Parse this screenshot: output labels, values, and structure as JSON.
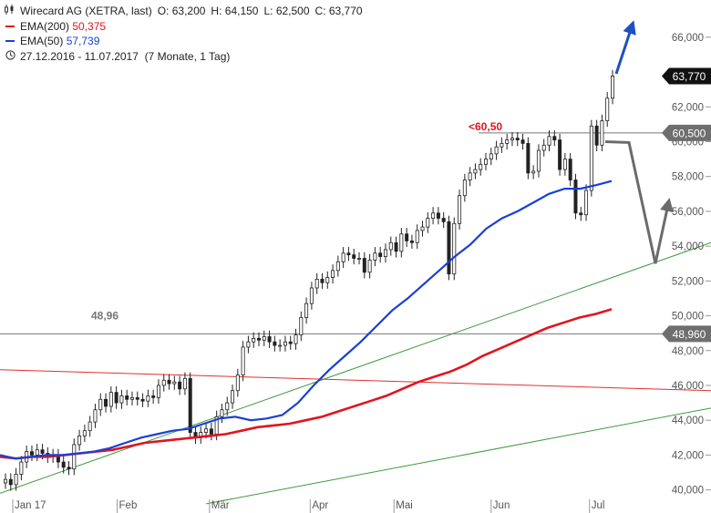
{
  "header": {
    "instrument": "Wirecard AG (XETRA, last)",
    "ohlc": [
      {
        "label": "O:",
        "value": "63,200"
      },
      {
        "label": "H:",
        "value": "64,150"
      },
      {
        "label": "L:",
        "value": "62,500"
      },
      {
        "label": "C:",
        "value": "63,770"
      }
    ],
    "ema200_label": "EMA(200)",
    "ema200_value": "50,375",
    "ema50_label": "EMA(50)",
    "ema50_value": "57,739",
    "period": "27.12.2016 - 11.07.2017",
    "period_detail": "(7 Monate, 1 Tag)",
    "chart_icon": "candlestick-icon",
    "clock_icon": "clock-icon"
  },
  "colors": {
    "ema200": "#e0141e",
    "ema50": "#1a3fd6",
    "support_line": "#3c9a3c",
    "resistance_line": "#e03030",
    "arrow_up": "#1f4fc0",
    "arrow_path": "#6b6b6b",
    "level_line": "#777777"
  },
  "chart_data": {
    "type": "candlestick",
    "x_ticks": [
      "Jan 17",
      "Feb",
      "Mär",
      "Apr",
      "Mai",
      "Jun",
      "Jul"
    ],
    "y_ticks": [
      "40,000",
      "42,000",
      "44,000",
      "46,000",
      "48,000",
      "50,000",
      "52,000",
      "54,000",
      "56,000",
      "58,000",
      "60,000",
      "62,000",
      "64,000",
      "66,000"
    ],
    "y_tick_values": [
      40,
      42,
      44,
      46,
      48,
      50,
      52,
      54,
      56,
      58,
      60,
      62,
      64,
      66
    ],
    "ylim": [
      39.3,
      67.3
    ],
    "grid": false,
    "candles_close": [
      40.6,
      40.3,
      40.9,
      41.6,
      42.2,
      42.0,
      42.3,
      42.1,
      41.9,
      42.0,
      41.6,
      41.3,
      41.2,
      42.6,
      43.1,
      43.4,
      43.9,
      44.6,
      45.2,
      44.8,
      45.6,
      45.0,
      45.4,
      45.2,
      45.3,
      45.2,
      45.1,
      45.4,
      45.3,
      46.0,
      46.3,
      46.1,
      46.2,
      45.8,
      46.4,
      43.3,
      43.0,
      43.3,
      43.5,
      43.2,
      44.2,
      44.6,
      45.0,
      45.7,
      46.6,
      48.2,
      48.5,
      48.7,
      48.6,
      48.8,
      48.5,
      48.3,
      48.3,
      48.5,
      48.4,
      48.9,
      49.9,
      50.7,
      51.6,
      52.1,
      51.9,
      52.2,
      52.6,
      53.1,
      53.6,
      53.5,
      53.3,
      53.3,
      52.5,
      53.2,
      53.6,
      53.4,
      53.8,
      54.2,
      53.7,
      54.7,
      54.3,
      54.2,
      54.9,
      55.1,
      55.6,
      55.9,
      55.6,
      55.4,
      52.4,
      55.3,
      56.9,
      57.8,
      58.2,
      58.4,
      58.7,
      59.0,
      59.3,
      59.7,
      59.9,
      60.1,
      60.2,
      60.1,
      59.9,
      58.2,
      58.3,
      59.5,
      59.8,
      60.3,
      60.1,
      58.4,
      59.0,
      57.8,
      55.9,
      55.8,
      57.2,
      60.9,
      59.8,
      61.2,
      62.5,
      63.77
    ],
    "ema200": [
      41.9,
      41.8,
      41.9,
      41.9,
      42.0,
      42.1,
      42.2,
      42.3,
      42.5,
      42.7,
      42.8,
      42.9,
      43.0,
      43.1,
      43.2,
      43.4,
      43.6,
      43.7,
      43.8,
      44.0,
      44.2,
      44.5,
      44.8,
      45.1,
      45.4,
      45.8,
      46.2,
      46.5,
      46.8,
      47.2,
      47.7,
      48.1,
      48.5,
      48.9,
      49.3,
      49.6,
      49.9,
      50.1,
      50.375
    ],
    "ema50": [
      42.0,
      41.8,
      41.9,
      42.0,
      42.0,
      42.1,
      42.2,
      42.4,
      42.7,
      43.0,
      43.2,
      43.4,
      43.5,
      43.8,
      44.1,
      44.2,
      44.0,
      44.1,
      44.3,
      45.0,
      46.0,
      46.9,
      47.7,
      48.5,
      49.4,
      50.3,
      51.0,
      51.8,
      52.6,
      53.4,
      54.1,
      55.0,
      55.6,
      56.0,
      56.5,
      57.0,
      57.3,
      57.3,
      57.5,
      57.739
    ],
    "last_price": "63,770",
    "levels": [
      {
        "label": "60,500",
        "value": 60.5,
        "note": "<60,50"
      },
      {
        "label": "48,960",
        "value": 48.96,
        "note": "48,96"
      }
    ],
    "trendlines": [
      {
        "name": "support-upper",
        "from": [
          0,
          39.8
        ],
        "to": [
          1.0,
          54.2
        ]
      },
      {
        "name": "support-lower",
        "from": [
          0.29,
          39.2
        ],
        "to": [
          1.0,
          44.7
        ]
      },
      {
        "name": "resistance",
        "from": [
          0,
          46.9
        ],
        "to": [
          1.0,
          45.7
        ]
      }
    ]
  }
}
